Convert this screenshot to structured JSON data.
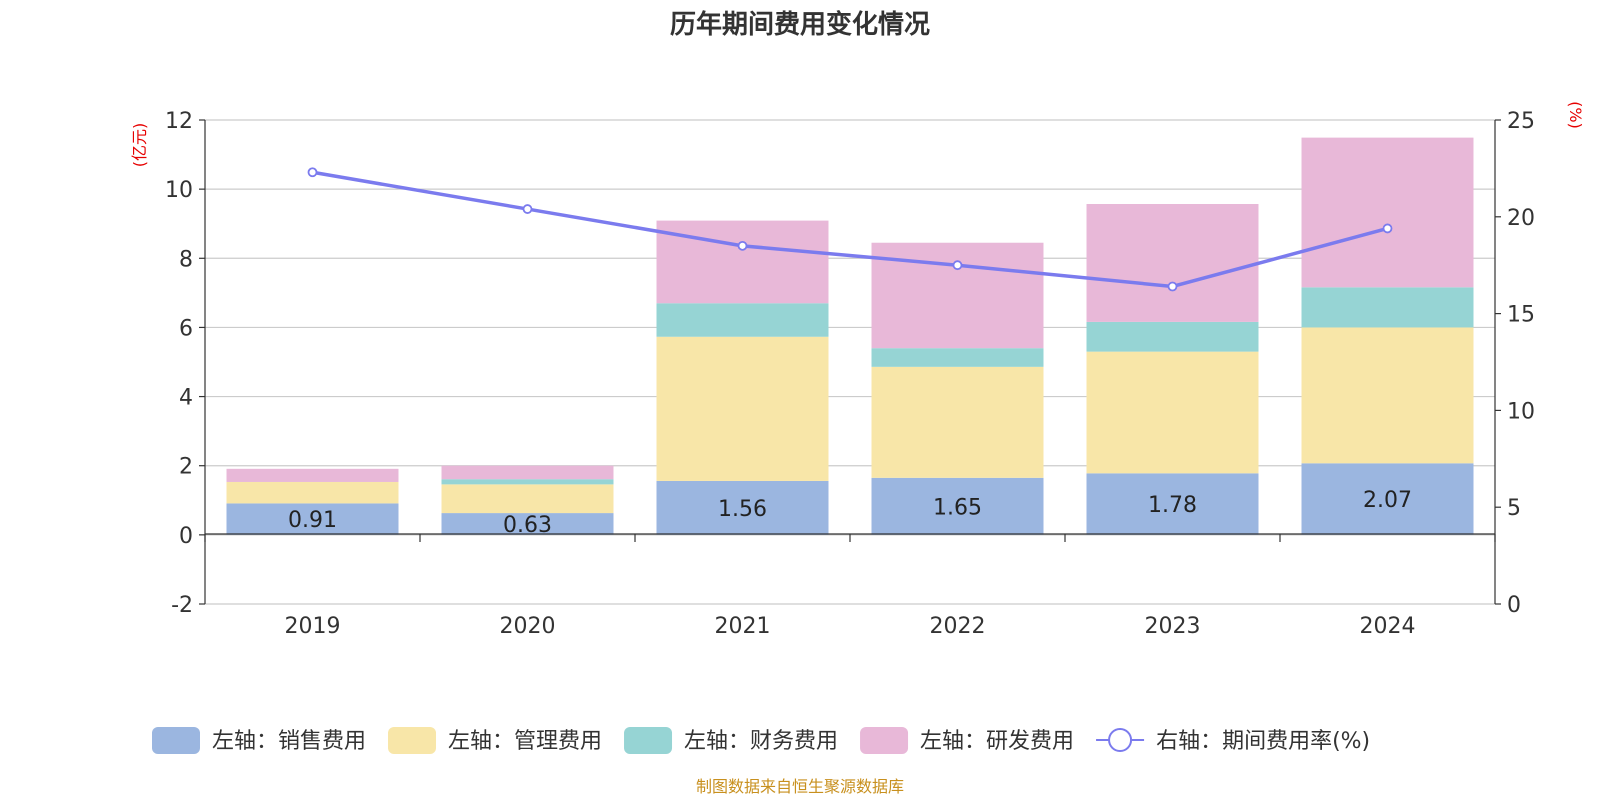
{
  "chart_data": {
    "type": "bar",
    "stacked": true,
    "title": "历年期间费用变化情况",
    "categories": [
      "2019",
      "2020",
      "2021",
      "2022",
      "2023",
      "2024"
    ],
    "left_axis": {
      "unit": "(亿元)",
      "ylim": [
        -2,
        12
      ],
      "ticks": [
        -2,
        0,
        2,
        4,
        6,
        8,
        10,
        12
      ]
    },
    "right_axis": {
      "unit": "(%)",
      "ylim": [
        0,
        25
      ],
      "ticks": [
        0,
        5,
        10,
        15,
        20,
        25
      ]
    },
    "series": [
      {
        "name": "左轴：销售费用",
        "axis": "left",
        "color": "#9bb6e0",
        "values": [
          0.91,
          0.63,
          1.56,
          1.65,
          1.78,
          2.07
        ],
        "labels": [
          "0.91",
          "0.63",
          "1.56",
          "1.65",
          "1.78",
          "2.07"
        ]
      },
      {
        "name": "左轴：管理费用",
        "axis": "left",
        "color": "#f8e6a8",
        "values": [
          0.62,
          0.83,
          4.17,
          3.21,
          3.52,
          3.93
        ]
      },
      {
        "name": "左轴：财务费用",
        "axis": "left",
        "color": "#96d4d4",
        "values": [
          0.0,
          0.15,
          0.97,
          0.54,
          0.86,
          1.16
        ]
      },
      {
        "name": "左轴：研发费用",
        "axis": "left",
        "color": "#e8b8d8",
        "values": [
          0.38,
          0.39,
          2.39,
          3.05,
          3.41,
          4.33
        ]
      },
      {
        "name": "右轴：期间费用率(%)",
        "axis": "right",
        "type": "line",
        "color": "#7b7bee",
        "values": [
          22.3,
          20.4,
          18.5,
          17.5,
          16.4,
          19.4
        ]
      }
    ],
    "source": "制图数据来自恒生聚源数据库"
  }
}
